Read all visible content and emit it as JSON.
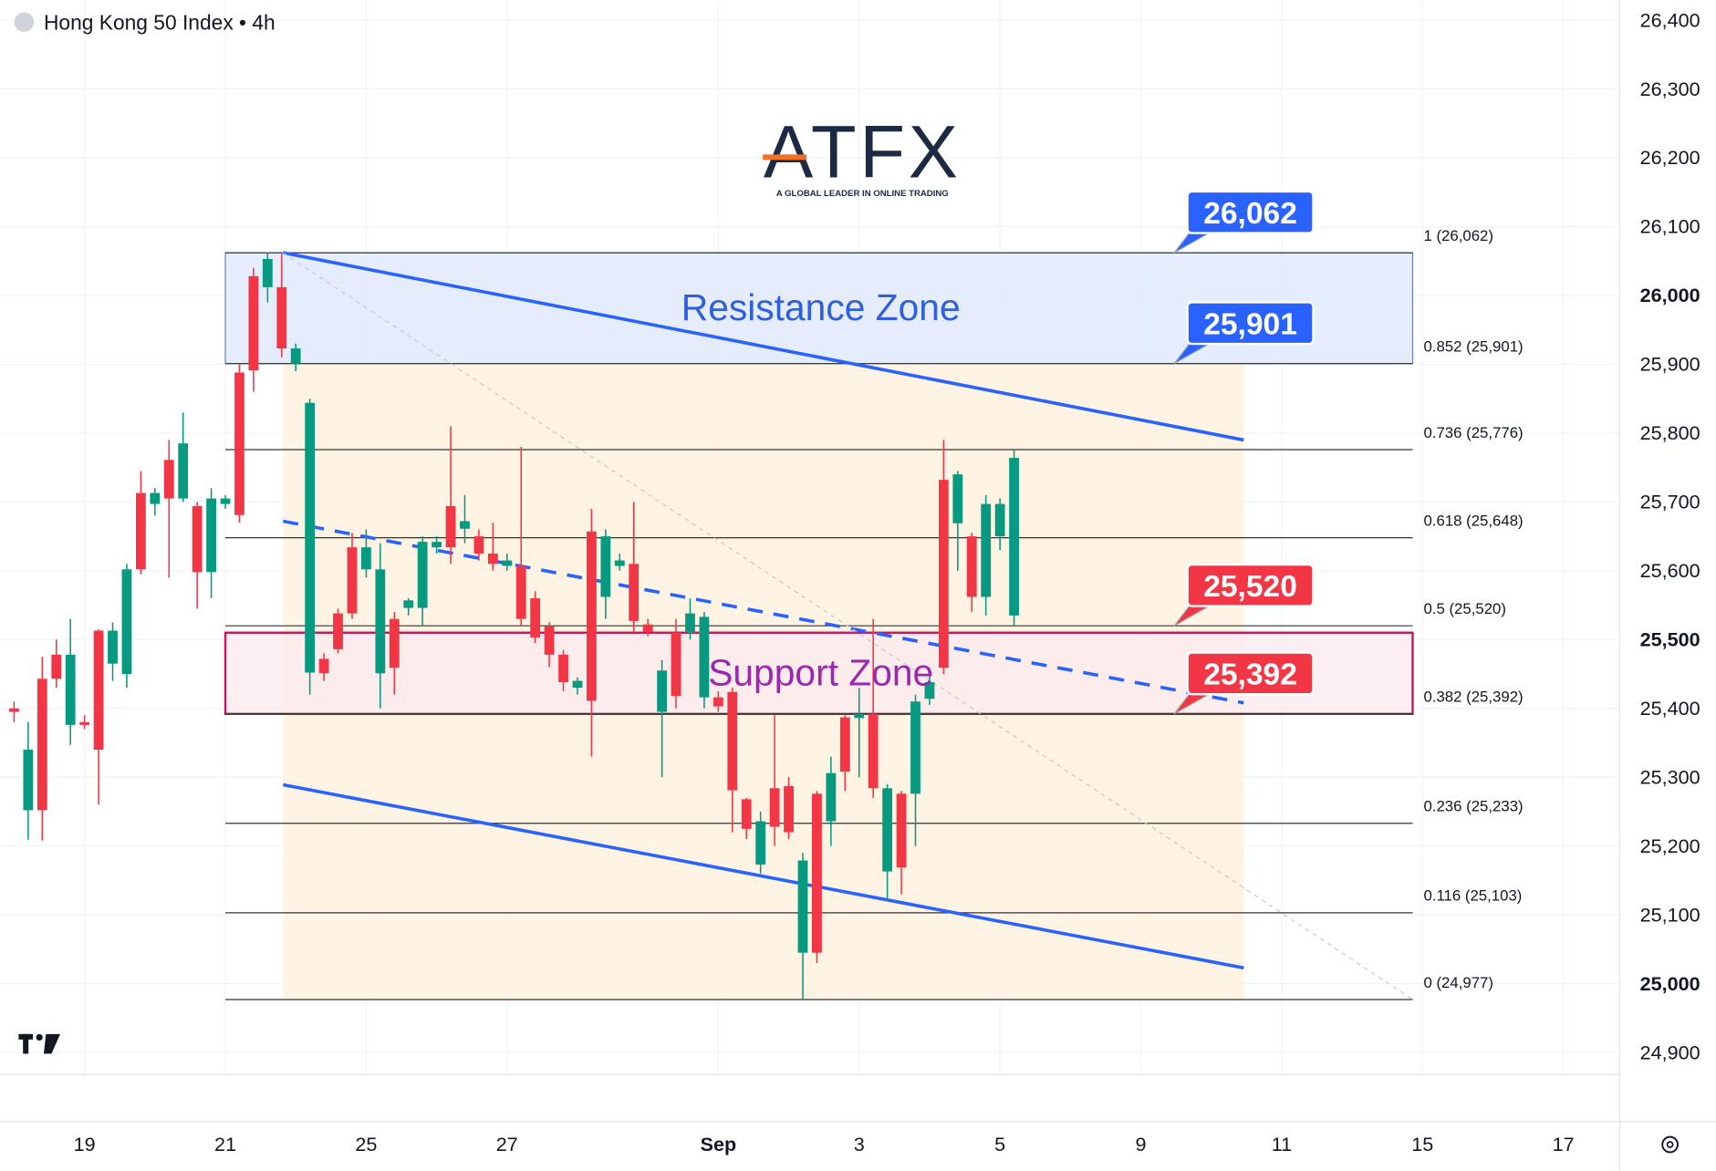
{
  "chart_data": {
    "type": "candlestick",
    "title": "Hong Kong 50 Index • 4h",
    "logo": {
      "title": "ATFX",
      "tagline": "A GLOBAL LEADER IN ONLINE TRADING"
    },
    "xlim": [
      -1,
      114
    ],
    "xticks": [
      {
        "value": 5,
        "label": "19"
      },
      {
        "value": 15,
        "label": "21"
      },
      {
        "value": 25,
        "label": "25"
      },
      {
        "value": 35,
        "label": "27"
      },
      {
        "value": 50,
        "label": "Sep"
      },
      {
        "value": 60,
        "label": "3"
      },
      {
        "value": 70,
        "label": "5"
      },
      {
        "value": 80,
        "label": "9"
      },
      {
        "value": 90,
        "label": "11"
      },
      {
        "value": 100,
        "label": "15"
      },
      {
        "value": 110,
        "label": "17"
      }
    ],
    "ylim": [
      24868,
      26429
    ],
    "yticks": [
      {
        "value": 24900,
        "label": "24,900"
      },
      {
        "value": 25000,
        "label": "25,000"
      },
      {
        "value": 25100,
        "label": "25,100"
      },
      {
        "value": 25200,
        "label": "25,200"
      },
      {
        "value": 25300,
        "label": "25,300"
      },
      {
        "value": 25400,
        "label": "25,400"
      },
      {
        "value": 25500,
        "label": "25,500"
      },
      {
        "value": 25600,
        "label": "25,600"
      },
      {
        "value": 25700,
        "label": "25,700"
      },
      {
        "value": 25800,
        "label": "25,800"
      },
      {
        "value": 25900,
        "label": "25,900"
      },
      {
        "value": 26000,
        "label": "26,000"
      },
      {
        "value": 26100,
        "label": "26,100"
      },
      {
        "value": 26200,
        "label": "26,200"
      },
      {
        "value": 26300,
        "label": "26,300"
      },
      {
        "value": 26400,
        "label": "26,400"
      }
    ],
    "grid": true,
    "up_color": "#089981",
    "down_color": "#f23645",
    "open": [
      25400,
      25252,
      25443,
      25478,
      25376,
      25380,
      25513,
      25465,
      25450,
      25713,
      25697,
      25761,
      25705,
      25694,
      25598,
      25697,
      25888,
      26028,
      26012,
      26012,
      25901,
      25452,
      25472,
      25538,
      25634,
      25602,
      25451,
      25530,
      25546,
      25546,
      25634,
      25694,
      25661,
      25650,
      25625,
      25607,
      25607,
      25560,
      25519,
      25478,
      25430,
      25657,
      25562,
      25607,
      25610,
      25522,
      25395,
      25510,
      25510,
      25416,
      25416,
      25424,
      25268,
      25173,
      25284,
      25287,
      25045,
      25276,
      25236,
      25387,
      25386,
      25392,
      25163,
      25276,
      25276,
      25414,
      25732,
      25669,
      25650,
      25562,
      25650,
      25535
    ],
    "high": [
      25410,
      25380,
      25475,
      25500,
      25530,
      25390,
      25515,
      25525,
      25610,
      25745,
      25720,
      25790,
      25830,
      25700,
      25720,
      25710,
      25900,
      26040,
      26062,
      26060,
      25930,
      25850,
      25480,
      25545,
      25655,
      25660,
      25640,
      25540,
      25560,
      25650,
      25650,
      25810,
      25710,
      25660,
      25670,
      25625,
      25780,
      25570,
      25525,
      25485,
      25445,
      25690,
      25660,
      25625,
      25700,
      25530,
      25470,
      25530,
      25560,
      25540,
      25425,
      25430,
      25270,
      25250,
      25390,
      25300,
      25190,
      25280,
      25330,
      25390,
      25430,
      25530,
      25290,
      25280,
      25420,
      25450,
      25790,
      25745,
      25655,
      25710,
      25705,
      25776
    ],
    "low": [
      25380,
      25209,
      25208,
      25430,
      25347,
      25370,
      25260,
      25440,
      25430,
      25595,
      25680,
      25590,
      25700,
      25545,
      25560,
      25690,
      25670,
      25860,
      25990,
      25910,
      25890,
      25420,
      25440,
      25480,
      25530,
      25590,
      25400,
      25420,
      25535,
      25520,
      25625,
      25610,
      25640,
      25615,
      25600,
      25600,
      25520,
      25495,
      25460,
      25425,
      25420,
      25330,
      25530,
      25600,
      25510,
      25505,
      25300,
      25400,
      25500,
      25400,
      25395,
      25220,
      25210,
      25160,
      25200,
      25210,
      24977,
      25030,
      25200,
      25280,
      25300,
      25270,
      25120,
      25130,
      25200,
      25405,
      25450,
      25600,
      25540,
      25535,
      25630,
      25520
    ],
    "close": [
      25395,
      25340,
      25252,
      25443,
      25478,
      25376,
      25340,
      25513,
      25602,
      25602,
      25713,
      25705,
      25785,
      25598,
      25705,
      25705,
      25681,
      25891,
      26053,
      25923,
      25923,
      25844,
      25451,
      25486,
      25538,
      25634,
      25602,
      25459,
      25557,
      25642,
      25642,
      25634,
      25672,
      25625,
      25610,
      25615,
      25530,
      25503,
      25478,
      25438,
      25440,
      25411,
      25650,
      25615,
      25527,
      25511,
      25455,
      25418,
      25538,
      25533,
      25403,
      25281,
      25225,
      25236,
      25228,
      25220,
      25179,
      25045,
      25306,
      25308,
      25392,
      25284,
      25284,
      25169,
      25410,
      25438,
      25459,
      25740,
      25562,
      25697,
      25697,
      25764
    ],
    "zones": [
      {
        "label": "Resistance Zone",
        "range": [
          25901,
          26062
        ],
        "x": [
          15,
          99.3
        ],
        "fill": "#dce7fb",
        "border": "#6b7fb0",
        "color": "#2f5fe0"
      },
      {
        "label": "Support Zone",
        "range": [
          25392,
          25510
        ],
        "x": [
          15,
          99.3
        ],
        "fill": "#fbe9ee",
        "border": "#c2185b",
        "color": "#9c27b0"
      }
    ],
    "fib": {
      "x": [
        15,
        99.3
      ],
      "fill_x": [
        19.1,
        87.3
      ],
      "fill_range": [
        24977,
        25901
      ],
      "fill": "#fff1dc",
      "levels": [
        {
          "value": 26062,
          "label": "1 (26,062)"
        },
        {
          "value": 25901,
          "label": "0.852 (25,901)"
        },
        {
          "value": 25776,
          "label": "0.736 (25,776)"
        },
        {
          "value": 25648,
          "label": "0.618 (25,648)"
        },
        {
          "value": 25520,
          "label": "0.5 (25,520)"
        },
        {
          "value": 25392,
          "label": "0.382 (25,392)"
        },
        {
          "value": 25233,
          "label": "0.236 (25,233)"
        },
        {
          "value": 25103,
          "label": "0.116 (25,103)"
        },
        {
          "value": 24977,
          "label": "0 (24,977)"
        }
      ]
    },
    "lines": [
      {
        "style": "solid",
        "color": "#2962ff",
        "x": [
          19.1,
          87.3
        ],
        "y": [
          26062,
          25790
        ]
      },
      {
        "style": "solid",
        "color": "#2962ff",
        "x": [
          19.1,
          87.3
        ],
        "y": [
          25289,
          25023
        ]
      },
      {
        "style": "dashed",
        "color": "#2962ff",
        "x": [
          19.1,
          87.3
        ],
        "y": [
          25672,
          25408
        ]
      },
      {
        "style": "dotted",
        "color": "#c8c8c8",
        "x": [
          19.1,
          99.3
        ],
        "y": [
          26062,
          24977
        ]
      }
    ],
    "callouts": [
      {
        "value": 26062,
        "label": "26,062",
        "color": "#2962ff"
      },
      {
        "value": 25901,
        "label": "25,901",
        "color": "#2962ff"
      },
      {
        "value": 25520,
        "label": "25,520",
        "color": "#f23645"
      },
      {
        "value": 25392,
        "label": "25,392",
        "color": "#f23645"
      }
    ]
  }
}
